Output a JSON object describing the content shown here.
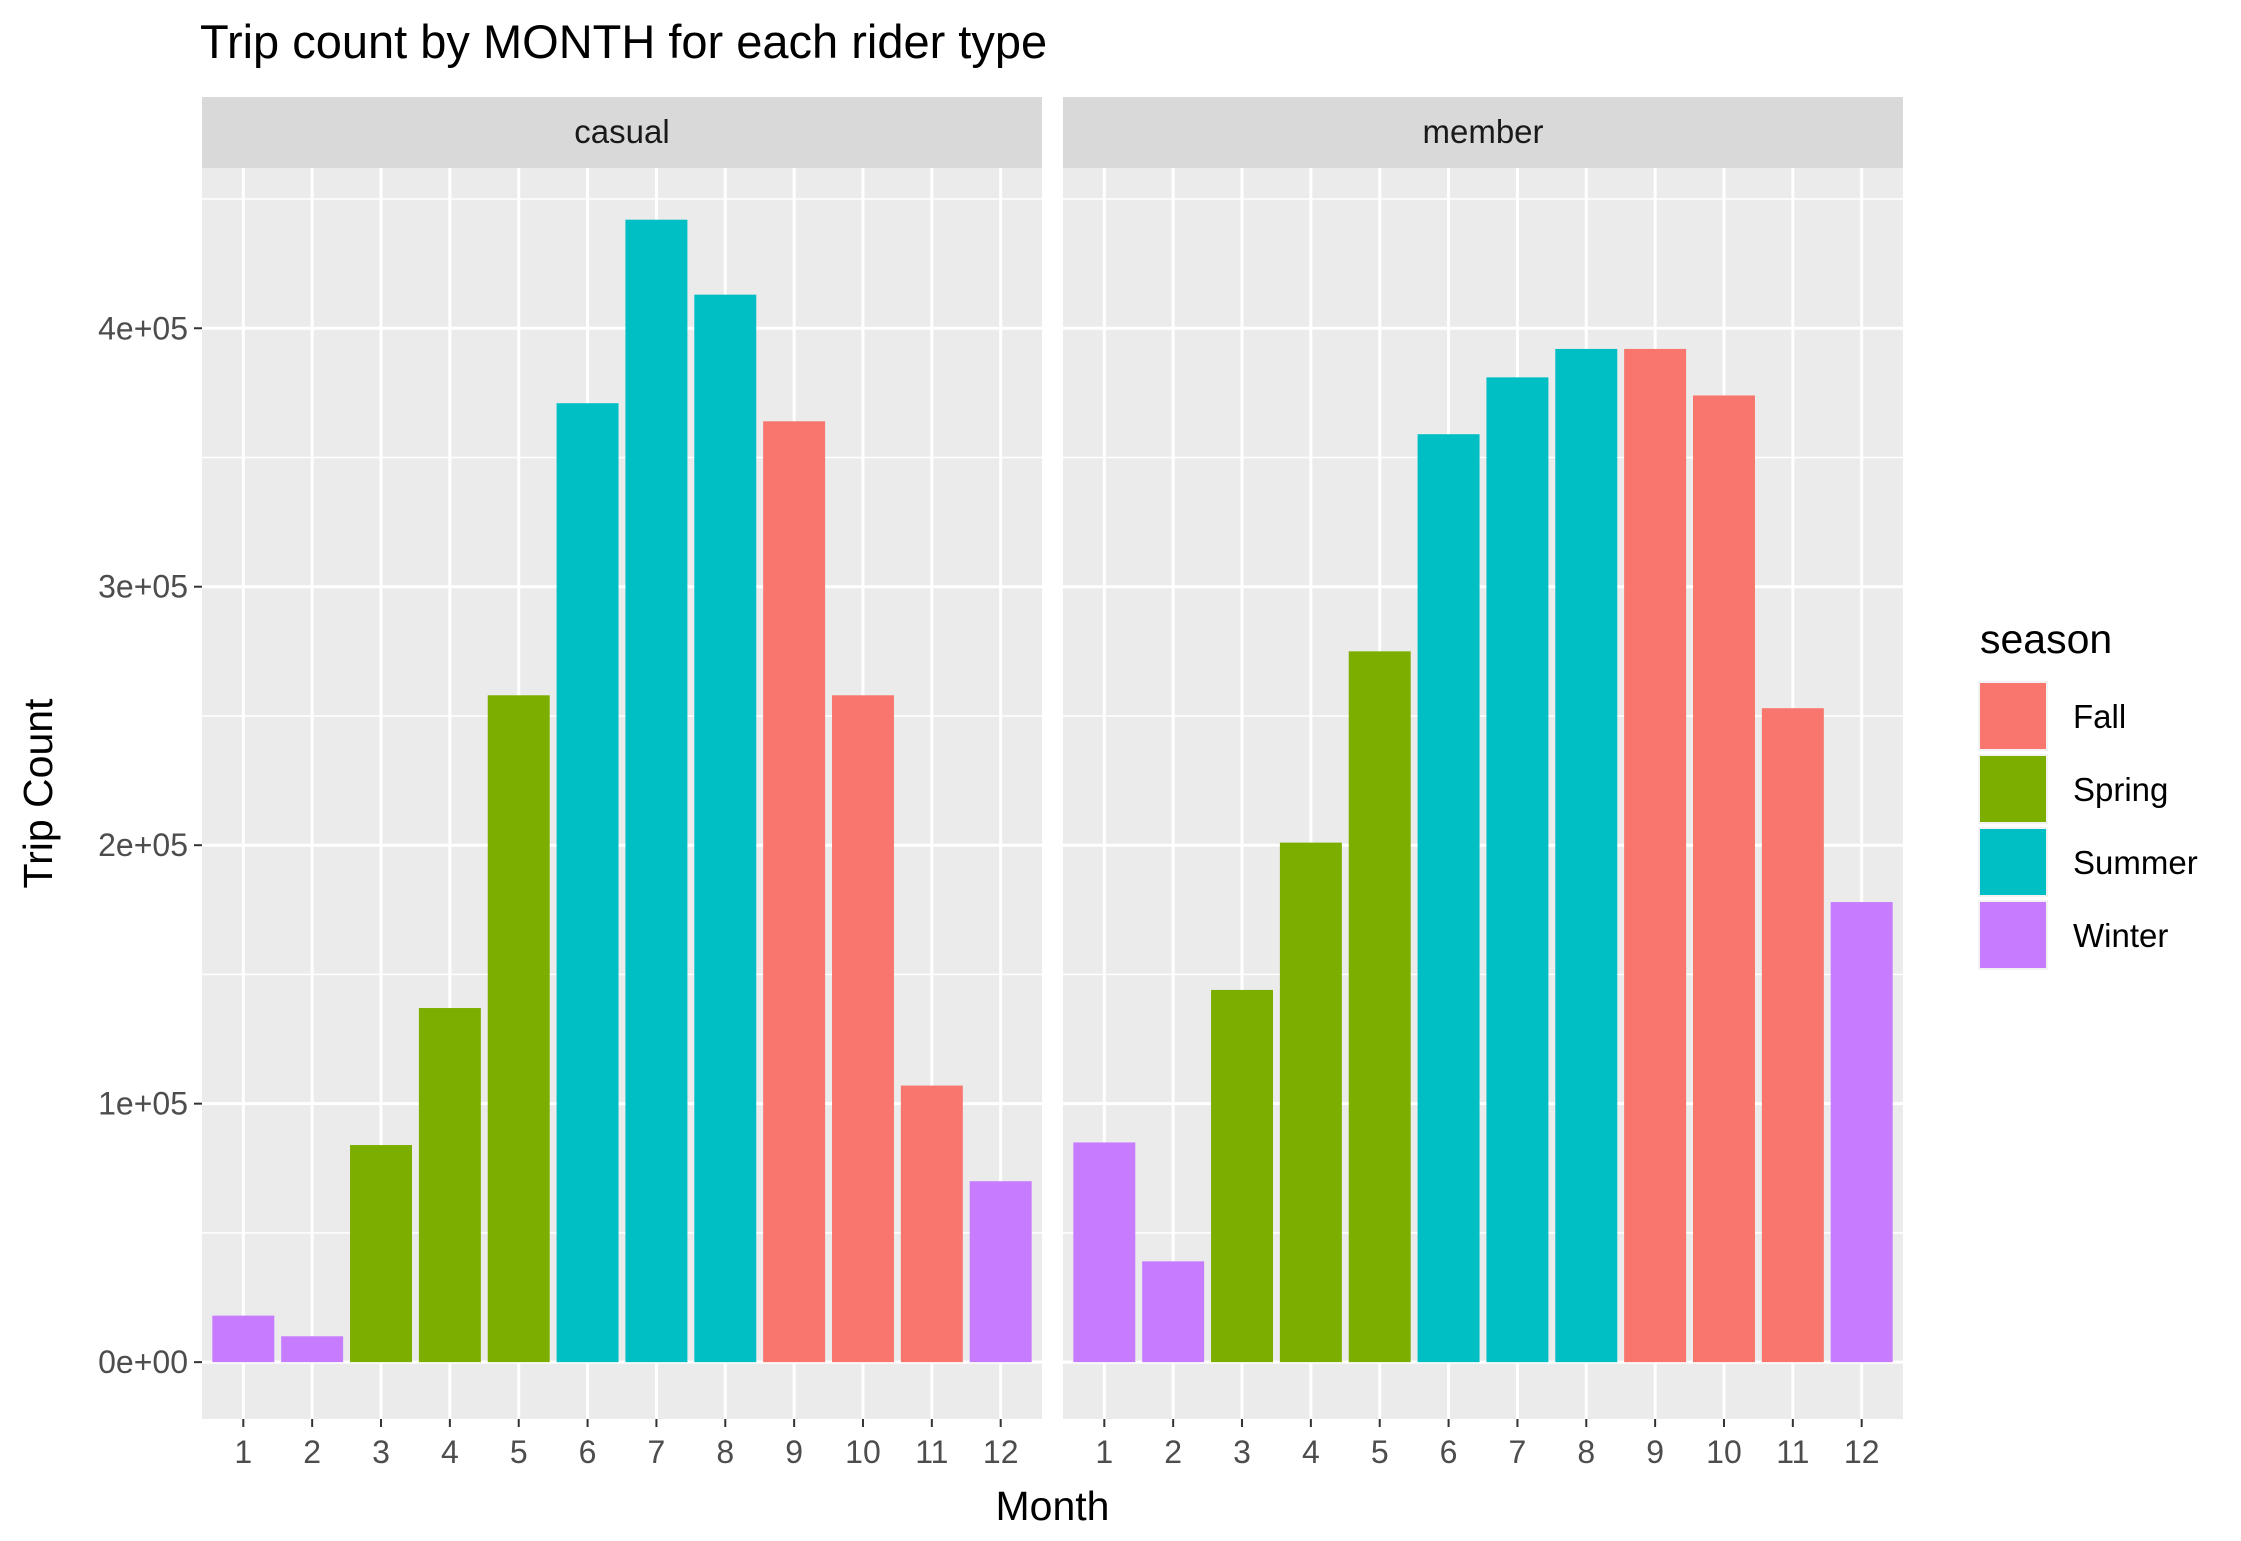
{
  "chart_data": {
    "type": "bar",
    "title": "Trip count by MONTH for each rider type",
    "xlabel": "Month",
    "ylabel": "Trip Count",
    "categories": [
      "1",
      "2",
      "3",
      "4",
      "5",
      "6",
      "7",
      "8",
      "9",
      "10",
      "11",
      "12"
    ],
    "ylim": [
      -22000,
      462000
    ],
    "yticks": [
      0,
      100000,
      200000,
      300000,
      400000
    ],
    "ytick_labels": [
      "0e+00",
      "1e+05",
      "2e+05",
      "3e+05",
      "4e+05"
    ],
    "grid": true,
    "legend": {
      "title": "season",
      "position": "right",
      "entries": [
        {
          "label": "Fall",
          "color": "#F8766D"
        },
        {
          "label": "Spring",
          "color": "#7CAE00"
        },
        {
          "label": "Summer",
          "color": "#00BFC4"
        },
        {
          "label": "Winter",
          "color": "#C77CFF"
        }
      ]
    },
    "facets": [
      {
        "label": "casual",
        "values": [
          18000,
          10000,
          84000,
          137000,
          258000,
          371000,
          442000,
          413000,
          364000,
          258000,
          107000,
          70000
        ],
        "seasons": [
          "Winter",
          "Winter",
          "Spring",
          "Spring",
          "Spring",
          "Summer",
          "Summer",
          "Summer",
          "Fall",
          "Fall",
          "Fall",
          "Winter"
        ]
      },
      {
        "label": "member",
        "values": [
          85000,
          39000,
          144000,
          201000,
          275000,
          359000,
          381000,
          392000,
          392000,
          374000,
          253000,
          178000
        ],
        "seasons": [
          "Winter",
          "Winter",
          "Spring",
          "Spring",
          "Spring",
          "Summer",
          "Summer",
          "Summer",
          "Fall",
          "Fall",
          "Fall",
          "Winter"
        ]
      }
    ]
  }
}
